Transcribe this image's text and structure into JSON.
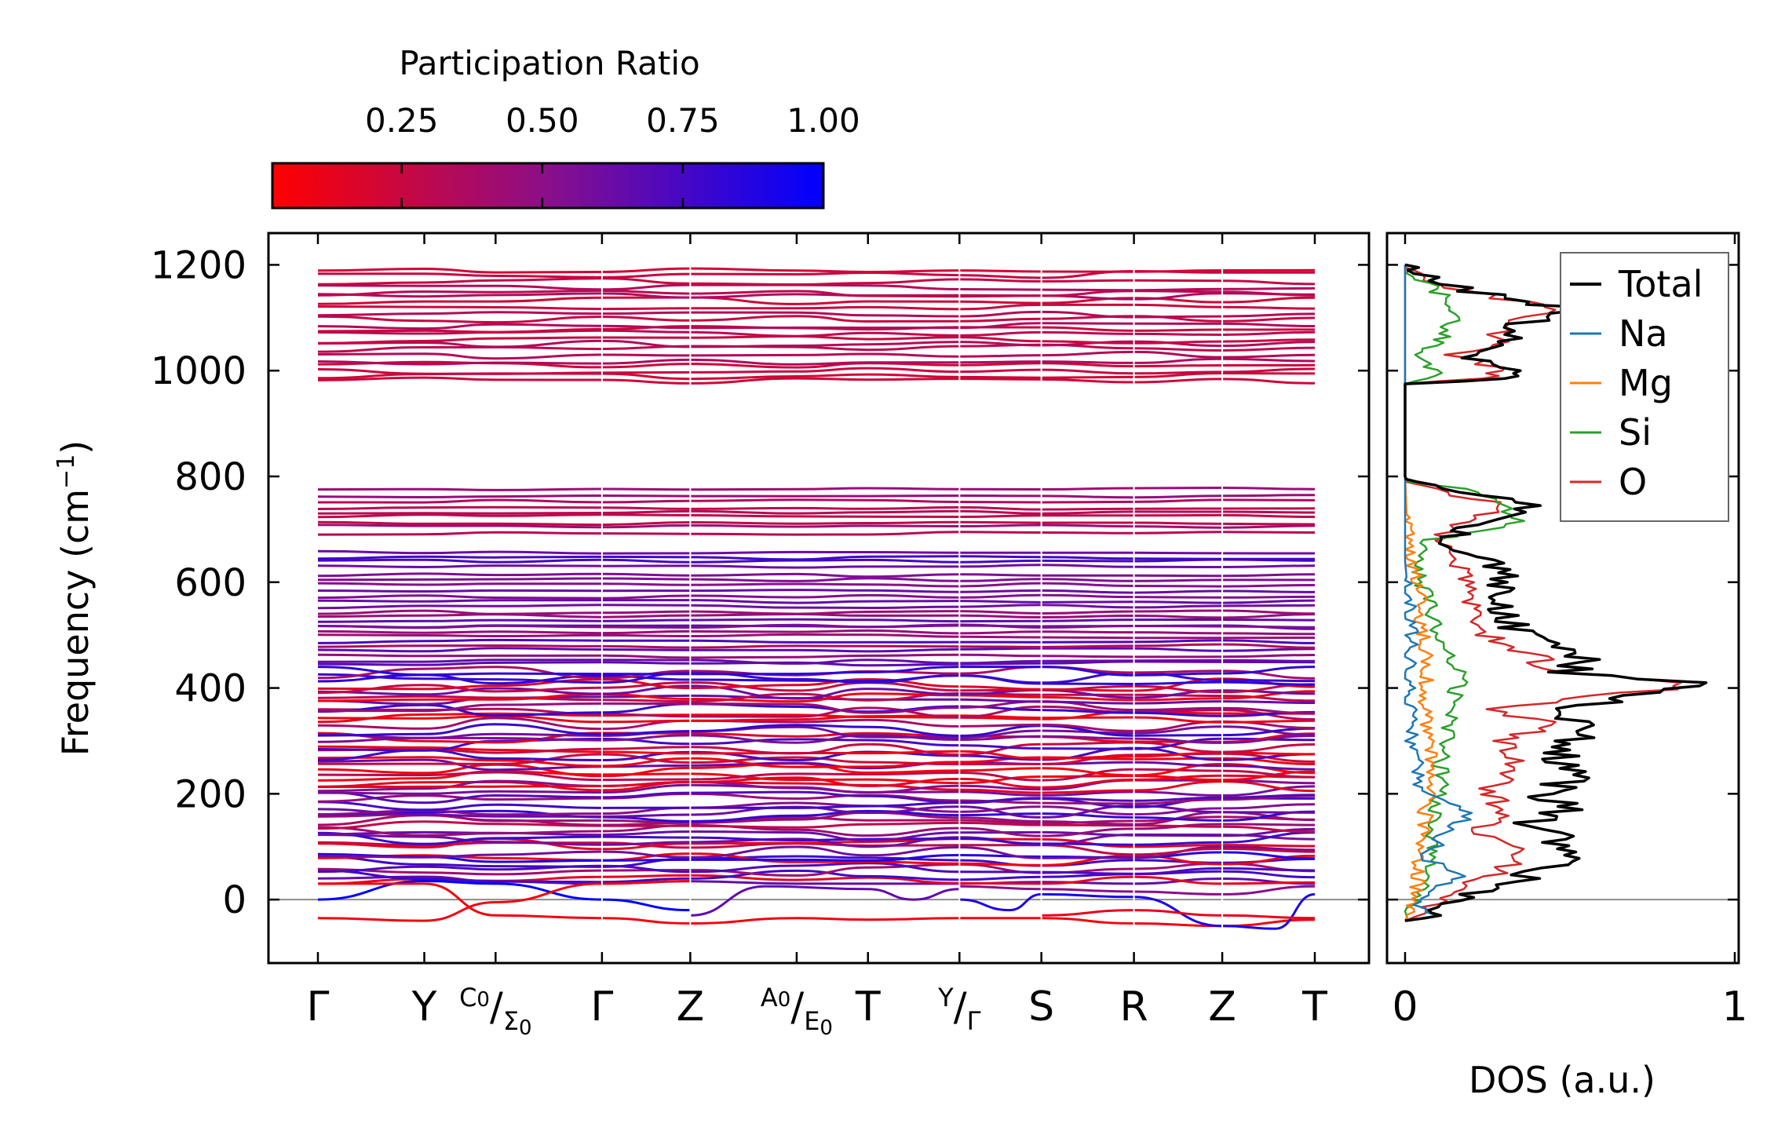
{
  "colors": {
    "low": "#ff0000",
    "mid": "#8a0f8a",
    "high": "#0000ff",
    "total": "#000000",
    "na": "#1f77b4",
    "mg": "#ff7f0e",
    "si": "#2ca02c",
    "o": "#d62728",
    "zero_line": "#8c8c8c"
  },
  "colorbar": {
    "title": "Participation Ratio",
    "ticks": [
      "0.25",
      "0.50",
      "0.75",
      "1.00"
    ],
    "tick_values": [
      0.25,
      0.5,
      0.75,
      1.0
    ],
    "range": [
      0.02,
      1.0
    ]
  },
  "chart_data": [
    {
      "type": "line",
      "name": "phonon-band-structure",
      "ylabel": "Frequency (cm",
      "ylabel_sup": "−1",
      "ylabel_end": ")",
      "ylim": [
        -120,
        1260
      ],
      "yticks": [
        0,
        200,
        400,
        600,
        800,
        1000,
        1200
      ],
      "ytick_labels": [
        "0",
        "200",
        "400",
        "600",
        "800",
        "1000",
        "1200"
      ],
      "kpath": [
        {
          "label": "Γ",
          "pos": 0.0
        },
        {
          "label": "Y",
          "pos": 1.0
        },
        {
          "label": "C",
          "sub": "0",
          "pos": 1.67,
          "sep": "/",
          "label2": "Σ",
          "sub2": "0"
        },
        {
          "label": "Γ",
          "pos": 2.67
        },
        {
          "label": "Z",
          "pos": 3.5
        },
        {
          "label": "A",
          "sub": "0",
          "pos": 4.5,
          "sep": "/",
          "label2": "E",
          "sub2": "0"
        },
        {
          "label": "T",
          "pos": 5.17
        },
        {
          "label": "Y",
          "pos": 6.03,
          "sep": "/",
          "label2": "Γ"
        },
        {
          "label": "S",
          "pos": 6.8
        },
        {
          "label": "R",
          "pos": 7.67
        },
        {
          "label": "Z",
          "pos": 8.5
        },
        {
          "label": "T",
          "pos": 9.37
        }
      ],
      "segment_breaks": [
        2.67,
        3.5,
        6.03,
        6.8,
        7.67,
        8.5
      ],
      "x_range": [
        0,
        9.37
      ],
      "band_groups": [
        {
          "range": [
            975,
            1195
          ],
          "count": 22,
          "pr": [
            0.15,
            0.35
          ]
        },
        {
          "range": [
            690,
            780
          ],
          "count": 9,
          "pr": [
            0.25,
            0.45
          ]
        },
        {
          "range": [
            560,
            665
          ],
          "count": 10,
          "pr": [
            0.5,
            0.8
          ]
        },
        {
          "range": [
            440,
            560
          ],
          "count": 14,
          "pr": [
            0.3,
            0.8
          ]
        },
        {
          "range": [
            30,
            440
          ],
          "count": 58,
          "pr": [
            0.05,
            0.95
          ]
        }
      ],
      "acoustic_modes": [
        {
          "points": [
            [
              0,
              0
            ],
            [
              1.0,
              35
            ],
            [
              1.67,
              30
            ],
            [
              2.67,
              0
            ],
            [
              3.5,
              -20
            ]
          ],
          "pr": 1.0
        },
        {
          "points": [
            [
              0,
              -35
            ],
            [
              1.0,
              -40
            ],
            [
              1.67,
              -5
            ],
            [
              2.67,
              30
            ],
            [
              3.5,
              35
            ]
          ],
          "pr": 0.05
        },
        {
          "points": [
            [
              0,
              30
            ],
            [
              1.0,
              30
            ],
            [
              1.67,
              -30
            ],
            [
              2.67,
              -35
            ],
            [
              3.5,
              -45
            ],
            [
              4.5,
              -35
            ],
            [
              5.17,
              -38
            ],
            [
              6.03,
              -35
            ],
            [
              6.8,
              -35
            ],
            [
              7.67,
              -45
            ],
            [
              8.5,
              -50
            ],
            [
              9.37,
              -38
            ]
          ],
          "pr": 0.05
        },
        {
          "points": [
            [
              3.5,
              -30
            ],
            [
              4.2,
              25
            ],
            [
              5.17,
              20
            ],
            [
              5.6,
              0
            ],
            [
              6.03,
              20
            ]
          ],
          "pr": 0.65
        },
        {
          "points": [
            [
              6.03,
              0
            ],
            [
              6.5,
              -20
            ],
            [
              6.8,
              10
            ],
            [
              7.67,
              5
            ],
            [
              8.5,
              -50
            ],
            [
              9.0,
              -55
            ],
            [
              9.37,
              10
            ]
          ],
          "pr": 0.9
        },
        {
          "points": [
            [
              6.8,
              -30
            ],
            [
              7.67,
              -20
            ],
            [
              8.5,
              -30
            ],
            [
              9.37,
              -35
            ]
          ],
          "pr": 0.1
        },
        {
          "points": [
            [
              6.03,
              25
            ],
            [
              6.8,
              20
            ],
            [
              7.67,
              15
            ],
            [
              8.5,
              10
            ],
            [
              9.37,
              25
            ]
          ],
          "pr": 0.5
        }
      ]
    },
    {
      "type": "line",
      "name": "density-of-states",
      "xlabel": "DOS (a.u.)",
      "xlim": [
        0,
        1
      ],
      "xticks": [
        0,
        1
      ],
      "xtick_labels": [
        "0",
        "1"
      ],
      "ylim": [
        -120,
        1260
      ],
      "series": [
        {
          "name": "Total",
          "color": "#000000",
          "points": [
            [
              0,
              -40
            ],
            [
              0.08,
              -30
            ],
            [
              0.1,
              -20
            ],
            [
              0.2,
              10
            ],
            [
              0.35,
              40
            ],
            [
              0.42,
              60
            ],
            [
              0.5,
              90
            ],
            [
              0.45,
              120
            ],
            [
              0.38,
              145
            ],
            [
              0.5,
              170
            ],
            [
              0.42,
              200
            ],
            [
              0.52,
              230
            ],
            [
              0.45,
              260
            ],
            [
              0.5,
              300
            ],
            [
              0.55,
              330
            ],
            [
              0.42,
              355
            ],
            [
              0.65,
              380
            ],
            [
              0.95,
              410
            ],
            [
              0.5,
              430
            ],
            [
              0.55,
              460
            ],
            [
              0.4,
              490
            ],
            [
              0.32,
              520
            ],
            [
              0.3,
              560
            ],
            [
              0.3,
              600
            ],
            [
              0.28,
              630
            ],
            [
              0.15,
              660
            ],
            [
              0.12,
              680
            ],
            [
              0.25,
              720
            ],
            [
              0.42,
              745
            ],
            [
              0.15,
              770
            ],
            [
              0.02,
              790
            ],
            [
              0,
              800
            ],
            [
              0,
              975
            ],
            [
              0.28,
              985
            ],
            [
              0.35,
              1000
            ],
            [
              0.18,
              1030
            ],
            [
              0.33,
              1055
            ],
            [
              0.3,
              1075
            ],
            [
              0.38,
              1095
            ],
            [
              0.5,
              1115
            ],
            [
              0.4,
              1130
            ],
            [
              0.2,
              1150
            ],
            [
              0.1,
              1170
            ],
            [
              0.03,
              1190
            ],
            [
              0,
              1200
            ]
          ]
        },
        {
          "name": "Na",
          "color": "#1f77b4",
          "points": [
            [
              0,
              -40
            ],
            [
              0.08,
              -30
            ],
            [
              0.02,
              -10
            ],
            [
              0.1,
              20
            ],
            [
              0.18,
              50
            ],
            [
              0.05,
              80
            ],
            [
              0.12,
              120
            ],
            [
              0.2,
              170
            ],
            [
              0.05,
              200
            ],
            [
              0.02,
              300
            ],
            [
              0.01,
              400
            ],
            [
              0.02,
              500
            ],
            [
              0,
              640
            ],
            [
              0,
              1200
            ]
          ]
        },
        {
          "name": "Mg",
          "color": "#ff7f0e",
          "points": [
            [
              0,
              -40
            ],
            [
              0.03,
              0
            ],
            [
              0.05,
              100
            ],
            [
              0.07,
              200
            ],
            [
              0.08,
              300
            ],
            [
              0.06,
              380
            ],
            [
              0.07,
              450
            ],
            [
              0.05,
              520
            ],
            [
              0.04,
              600
            ],
            [
              0.01,
              650
            ],
            [
              0,
              800
            ],
            [
              0,
              1200
            ]
          ]
        },
        {
          "name": "Si",
          "color": "#2ca02c",
          "points": [
            [
              0,
              -40
            ],
            [
              0.05,
              20
            ],
            [
              0.1,
              80
            ],
            [
              0.08,
              150
            ],
            [
              0.1,
              200
            ],
            [
              0.12,
              300
            ],
            [
              0.15,
              380
            ],
            [
              0.18,
              430
            ],
            [
              0.1,
              480
            ],
            [
              0.08,
              550
            ],
            [
              0.05,
              600
            ],
            [
              0.03,
              650
            ],
            [
              0.08,
              680
            ],
            [
              0.35,
              710
            ],
            [
              0.3,
              745
            ],
            [
              0.25,
              770
            ],
            [
              0.01,
              790
            ],
            [
              0,
              800
            ],
            [
              0,
              975
            ],
            [
              0.1,
              990
            ],
            [
              0.05,
              1030
            ],
            [
              0.12,
              1070
            ],
            [
              0.15,
              1120
            ],
            [
              0.08,
              1160
            ],
            [
              0.01,
              1190
            ]
          ]
        },
        {
          "name": "O",
          "color": "#d62728",
          "points": [
            [
              0,
              -40
            ],
            [
              0.06,
              -20
            ],
            [
              0.15,
              20
            ],
            [
              0.28,
              50
            ],
            [
              0.35,
              90
            ],
            [
              0.22,
              130
            ],
            [
              0.3,
              170
            ],
            [
              0.25,
              210
            ],
            [
              0.35,
              250
            ],
            [
              0.3,
              300
            ],
            [
              0.45,
              330
            ],
            [
              0.25,
              360
            ],
            [
              0.6,
              385
            ],
            [
              0.92,
              410
            ],
            [
              0.45,
              430
            ],
            [
              0.4,
              460
            ],
            [
              0.25,
              500
            ],
            [
              0.2,
              550
            ],
            [
              0.18,
              600
            ],
            [
              0.15,
              650
            ],
            [
              0.1,
              690
            ],
            [
              0.2,
              720
            ],
            [
              0.3,
              745
            ],
            [
              0.12,
              770
            ],
            [
              0.01,
              790
            ],
            [
              0,
              800
            ],
            [
              0,
              975
            ],
            [
              0.25,
              985
            ],
            [
              0.3,
              1000
            ],
            [
              0.15,
              1030
            ],
            [
              0.3,
              1055
            ],
            [
              0.28,
              1075
            ],
            [
              0.35,
              1095
            ],
            [
              0.45,
              1115
            ],
            [
              0.35,
              1130
            ],
            [
              0.18,
              1150
            ],
            [
              0.08,
              1170
            ],
            [
              0.02,
              1190
            ],
            [
              0,
              1200
            ]
          ]
        }
      ]
    }
  ]
}
